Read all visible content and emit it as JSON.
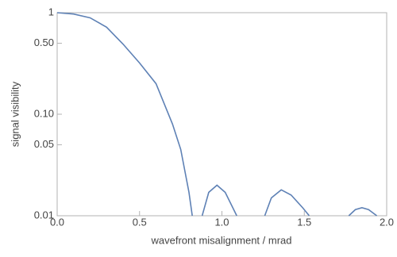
{
  "chart_data": {
    "type": "line",
    "xlabel": "wavefront misalignment / mrad",
    "ylabel": "signal visibility",
    "log_y": true,
    "xlim": [
      0,
      2.0
    ],
    "ylim": [
      0.01,
      1
    ],
    "xticks": [
      {
        "value": 0,
        "label": "0.0"
      },
      {
        "value": 0.5,
        "label": "0.5"
      },
      {
        "value": 1,
        "label": "1.0"
      },
      {
        "value": 1.5,
        "label": "1.5"
      },
      {
        "value": 2,
        "label": "2.0"
      }
    ],
    "yticks": [
      0.01,
      0.05,
      {
        "value": 0.1,
        "label": "0.10"
      },
      {
        "value": 0.5,
        "label": "0.50"
      },
      1
    ],
    "x": [
      0,
      0.1,
      0.2,
      0.3,
      0.4,
      0.5,
      0.6,
      0.7,
      0.75,
      0.8,
      0.82,
      0.85,
      0.88,
      0.92,
      0.97,
      1.02,
      1.09,
      1.18,
      1.26,
      1.3,
      1.36,
      1.42,
      1.49,
      1.53,
      1.65,
      1.77,
      1.81,
      1.85,
      1.89,
      1.94
    ],
    "series": [
      {
        "name": "visibility",
        "color": "#5e81b5",
        "values": [
          1,
          0.97,
          0.89,
          0.72,
          0.49,
          0.32,
          0.2,
          0.08,
          0.045,
          0.017,
          0.01,
          null,
          0.01,
          0.017,
          0.02,
          0.017,
          0.01,
          null,
          0.01,
          0.015,
          0.018,
          0.016,
          0.012,
          0.01,
          null,
          0.01,
          0.0115,
          0.012,
          0.0115,
          0.01
        ]
      }
    ]
  }
}
